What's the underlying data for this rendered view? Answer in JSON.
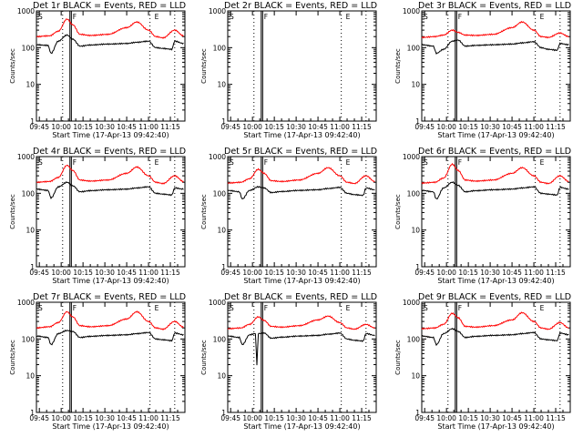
{
  "chart_data": {
    "type": "line",
    "grid": false,
    "legend": "none",
    "colors": {
      "events": "#000000",
      "lld": "#ff0000",
      "frame": "#000000"
    },
    "ylim": [
      1,
      1000
    ],
    "yscale": "log",
    "yticks": [
      "1",
      "10",
      "100",
      "1000"
    ],
    "ylabel": "Counts/sec",
    "xlabel": "Start Time (17-Apr-13 09:42:40)",
    "xlim_hhmm": [
      "09:43",
      "11:25"
    ],
    "xticks": [
      "09:45",
      "10:00",
      "10:15",
      "10:30",
      "10:45",
      "11:00",
      "11:15"
    ],
    "xticks_min": [
      585,
      600,
      615,
      630,
      645,
      660,
      675
    ],
    "panels": [
      {
        "title": "Det 1r BLACK = Events, RED = LLD",
        "flags": [
          "S",
          "F",
          "E"
        ],
        "empty": false,
        "dip": false,
        "solid_min": [
          606,
          607
        ],
        "dotted_min": [
          601,
          661,
          678
        ],
        "red_min": [
          583,
          592,
          598,
          604,
          608,
          613,
          620,
          632,
          645,
          652,
          660,
          665,
          670,
          678,
          684
        ],
        "red_val": [
          200,
          210,
          280,
          600,
          420,
          230,
          215,
          230,
          350,
          500,
          300,
          200,
          185,
          300,
          210
        ],
        "black_min": [
          583,
          591,
          593,
          598,
          604,
          608,
          613,
          620,
          632,
          645,
          652,
          660,
          665,
          670,
          676,
          678,
          684
        ],
        "black_val": [
          120,
          115,
          70,
          150,
          220,
          170,
          110,
          118,
          125,
          130,
          140,
          150,
          100,
          95,
          90,
          150,
          130
        ]
      },
      {
        "title": "Det 2r BLACK = Events, RED = LLD",
        "flags": [
          "S",
          "F",
          "E"
        ],
        "empty": true,
        "dip": false,
        "solid_min": [
          606,
          607
        ],
        "dotted_min": [
          601,
          661,
          678
        ],
        "red_min": [],
        "red_val": [],
        "black_min": [],
        "black_val": []
      },
      {
        "title": "Det 3r BLACK = Events, RED = LLD",
        "flags": [
          "S",
          "F",
          "E"
        ],
        "empty": false,
        "dip": false,
        "solid_min": [
          606,
          607
        ],
        "dotted_min": [
          601,
          661,
          678
        ],
        "red_min": [
          583,
          592,
          598,
          604,
          608,
          613,
          620,
          632,
          645,
          652,
          660,
          665,
          670,
          678,
          684
        ],
        "red_val": [
          190,
          200,
          220,
          300,
          260,
          220,
          215,
          230,
          350,
          500,
          300,
          200,
          190,
          250,
          200
        ],
        "black_min": [
          583,
          591,
          593,
          598,
          604,
          608,
          613,
          620,
          632,
          645,
          652,
          660,
          665,
          670,
          676,
          678,
          684
        ],
        "black_val": [
          120,
          110,
          70,
          90,
          150,
          160,
          110,
          115,
          120,
          125,
          135,
          145,
          100,
          90,
          85,
          130,
          120
        ]
      },
      {
        "title": "Det 4r BLACK = Events, RED = LLD",
        "flags": [
          "S",
          "F",
          "E"
        ],
        "empty": false,
        "dip": false,
        "solid_min": [
          606,
          607
        ],
        "dotted_min": [
          601,
          661,
          678
        ],
        "red_min": [
          583,
          592,
          598,
          604,
          608,
          613,
          620,
          632,
          645,
          652,
          660,
          665,
          670,
          678,
          684
        ],
        "red_val": [
          200,
          210,
          270,
          580,
          420,
          230,
          215,
          230,
          350,
          520,
          300,
          200,
          185,
          300,
          210
        ],
        "black_min": [
          583,
          591,
          593,
          598,
          604,
          608,
          613,
          620,
          632,
          645,
          652,
          660,
          665,
          670,
          676,
          678,
          684
        ],
        "black_val": [
          130,
          120,
          75,
          150,
          200,
          160,
          110,
          118,
          125,
          130,
          140,
          150,
          100,
          95,
          90,
          140,
          130
        ]
      },
      {
        "title": "Det 5r BLACK = Events, RED = LLD",
        "flags": [
          "S",
          "F",
          "E"
        ],
        "empty": false,
        "dip": false,
        "solid_min": [
          606,
          607
        ],
        "dotted_min": [
          601,
          661,
          678
        ],
        "red_min": [
          583,
          592,
          598,
          604,
          608,
          613,
          620,
          632,
          645,
          652,
          660,
          665,
          670,
          678,
          684
        ],
        "red_val": [
          190,
          200,
          250,
          450,
          350,
          220,
          210,
          230,
          350,
          500,
          300,
          200,
          185,
          300,
          210
        ],
        "black_min": [
          583,
          591,
          593,
          598,
          604,
          608,
          613,
          620,
          632,
          645,
          652,
          660,
          665,
          670,
          676,
          678,
          684
        ],
        "black_val": [
          120,
          110,
          70,
          120,
          150,
          140,
          105,
          112,
          120,
          125,
          135,
          145,
          100,
          92,
          88,
          140,
          125
        ]
      },
      {
        "title": "Det 6r BLACK = Events, RED = LLD",
        "flags": [
          "S",
          "F",
          "E"
        ],
        "empty": false,
        "dip": false,
        "solid_min": [
          606,
          607
        ],
        "dotted_min": [
          601,
          661,
          678
        ],
        "red_min": [
          583,
          592,
          598,
          604,
          608,
          613,
          620,
          632,
          645,
          652,
          660,
          665,
          670,
          678,
          684
        ],
        "red_val": [
          190,
          200,
          260,
          620,
          420,
          230,
          215,
          230,
          350,
          500,
          300,
          200,
          185,
          300,
          210
        ],
        "black_min": [
          583,
          591,
          593,
          598,
          604,
          608,
          613,
          620,
          632,
          645,
          652,
          660,
          665,
          670,
          676,
          678,
          684
        ],
        "black_val": [
          120,
          110,
          70,
          140,
          200,
          165,
          110,
          118,
          125,
          130,
          140,
          150,
          100,
          95,
          90,
          145,
          130
        ]
      },
      {
        "title": "Det 7r BLACK = Events, RED = LLD",
        "flags": [
          "S",
          "F",
          "E"
        ],
        "empty": false,
        "dip": false,
        "solid_min": [
          606,
          607
        ],
        "dotted_min": [
          601,
          661,
          678
        ],
        "red_min": [
          583,
          592,
          598,
          604,
          608,
          613,
          620,
          632,
          645,
          652,
          660,
          665,
          670,
          678,
          684
        ],
        "red_val": [
          200,
          215,
          280,
          550,
          400,
          230,
          215,
          230,
          350,
          550,
          300,
          200,
          185,
          300,
          210
        ],
        "black_min": [
          583,
          591,
          593,
          598,
          604,
          608,
          613,
          620,
          632,
          645,
          652,
          660,
          665,
          670,
          676,
          678,
          684
        ],
        "black_val": [
          120,
          110,
          70,
          140,
          170,
          160,
          110,
          118,
          125,
          130,
          140,
          150,
          100,
          95,
          90,
          145,
          130
        ]
      },
      {
        "title": "Det 8r BLACK = Events, RED = LLD",
        "flags": [
          "S",
          "F",
          "E"
        ],
        "empty": false,
        "dip": true,
        "solid_min": [
          606,
          607
        ],
        "dotted_min": [
          601,
          661,
          678
        ],
        "red_min": [
          583,
          592,
          598,
          604,
          608,
          613,
          620,
          632,
          645,
          652,
          660,
          665,
          670,
          678,
          684
        ],
        "red_val": [
          190,
          200,
          250,
          400,
          320,
          220,
          210,
          230,
          330,
          420,
          280,
          200,
          185,
          250,
          200
        ],
        "black_min": [
          583,
          591,
          593,
          598,
          602,
          603,
          604,
          608,
          613,
          620,
          632,
          645,
          652,
          660,
          665,
          670,
          676,
          678,
          684
        ],
        "black_val": [
          120,
          110,
          70,
          130,
          140,
          20,
          140,
          145,
          105,
          112,
          120,
          125,
          135,
          145,
          100,
          92,
          88,
          140,
          125
        ]
      },
      {
        "title": "Det 9r BLACK = Events, RED = LLD",
        "flags": [
          "S",
          "F",
          "E"
        ],
        "empty": false,
        "dip": false,
        "solid_min": [
          606,
          607
        ],
        "dotted_min": [
          601,
          661,
          678
        ],
        "red_min": [
          583,
          592,
          598,
          604,
          608,
          613,
          620,
          632,
          645,
          652,
          660,
          665,
          670,
          678,
          684
        ],
        "red_val": [
          190,
          200,
          250,
          500,
          380,
          220,
          210,
          230,
          330,
          520,
          300,
          200,
          185,
          280,
          200
        ],
        "black_min": [
          583,
          591,
          593,
          598,
          604,
          608,
          613,
          620,
          632,
          645,
          652,
          660,
          665,
          670,
          676,
          678,
          684
        ],
        "black_val": [
          120,
          110,
          70,
          140,
          190,
          160,
          110,
          118,
          125,
          130,
          140,
          150,
          100,
          95,
          90,
          145,
          130
        ]
      }
    ]
  }
}
